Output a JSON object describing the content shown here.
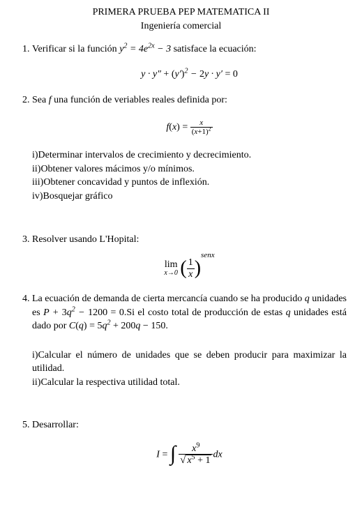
{
  "header": {
    "title": "PRIMERA PRUEBA PEP MATEMATICA II",
    "subtitle": "Ingeniería comercial"
  },
  "problems": {
    "p1": {
      "text_a": "Verificar si la función ",
      "fn": "y² = 4e²ˣ − 3",
      "text_b": " satisface la ecuación:",
      "equation": "y · y″ + (y′)² − 2y · y′ = 0"
    },
    "p2": {
      "text_a": "Sea ",
      "var": "f",
      "text_b": " una función de veriables reales definida por:",
      "fn_left": "f(x) = ",
      "fn_num": "x",
      "fn_den": "(x+1)²",
      "sub_i": "i)Determinar intervalos de crecimiento y decrecimiento.",
      "sub_ii": "ii)Obtener valores mácimos y/o mínimos.",
      "sub_iii": "iii)Obtener concavidad y puntos de inflexión.",
      "sub_iv": "iv)Bosquejar gráfico"
    },
    "p3": {
      "text": "Resolver usando L'Hopital:",
      "lim_top": "lim",
      "lim_bot": "x→0",
      "frac_num": "1",
      "frac_den": "x",
      "exponent": "senx"
    },
    "p4": {
      "text_a": "La ecuación de demanda de cierta mercancía cuando se ha producido ",
      "q1": "q",
      "text_b": " unidades es ",
      "eq1": "P + 3q² − 1200 = 0",
      "text_c": ".Si el costo total de producción de estas ",
      "q2": "q",
      "text_d": " unidades está dado por ",
      "eq2": "C(q) = 5q² + 200q − 150",
      "text_e": ".",
      "sub_i": "i)Calcular el número de unidades que se deben producir para maximizar la utilidad.",
      "sub_ii": "ii)Calcular la respectiva utilidad total."
    },
    "p5": {
      "text": "Desarrollar:",
      "lhs": "I = ",
      "num": "x⁹",
      "rad": "x⁵ + 1",
      "dx": "dx"
    }
  },
  "style": {
    "font_family": "Times New Roman",
    "font_size_pt": 11,
    "text_color": "#000000",
    "background": "#ffffff"
  }
}
